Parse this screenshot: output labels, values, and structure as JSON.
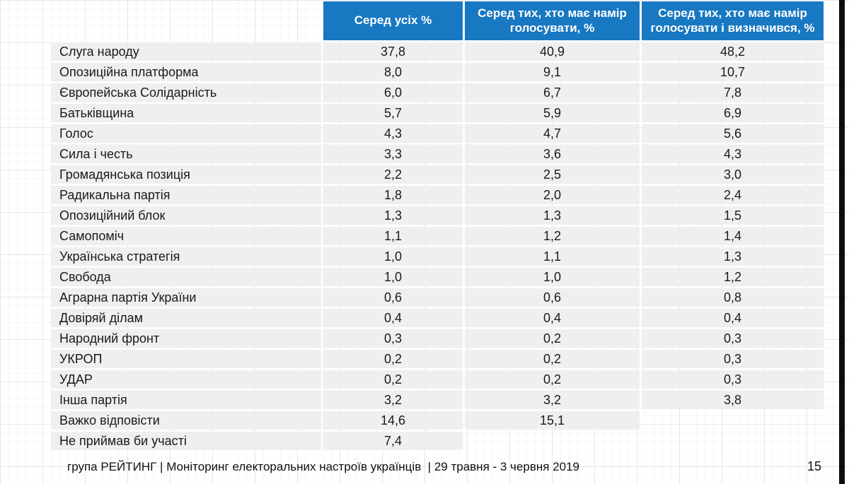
{
  "chart_data": {
    "type": "table",
    "columns": [
      "Серед усіх %",
      "Серед тих, хто має намір голосувати, %",
      "Серед тих, хто має намір голосувати і визначився, %"
    ],
    "rows": [
      {
        "name": "Слуга народу",
        "all": "37,8",
        "voters": "40,9",
        "decided": "48,2"
      },
      {
        "name": "Опозиційна платформа",
        "all": "8,0",
        "voters": "9,1",
        "decided": "10,7"
      },
      {
        "name": "Європейська Солідарність",
        "all": "6,0",
        "voters": "6,7",
        "decided": "7,8"
      },
      {
        "name": "Батьківщина",
        "all": "5,7",
        "voters": "5,9",
        "decided": "6,9"
      },
      {
        "name": "Голос",
        "all": "4,3",
        "voters": "4,7",
        "decided": "5,6"
      },
      {
        "name": "Сила і честь",
        "all": "3,3",
        "voters": "3,6",
        "decided": "4,3"
      },
      {
        "name": "Громадянська позиція",
        "all": "2,2",
        "voters": "2,5",
        "decided": "3,0"
      },
      {
        "name": "Радикальна партія",
        "all": "1,8",
        "voters": "2,0",
        "decided": "2,4"
      },
      {
        "name": "Опозиційний блок",
        "all": "1,3",
        "voters": "1,3",
        "decided": "1,5"
      },
      {
        "name": "Самопоміч",
        "all": "1,1",
        "voters": "1,2",
        "decided": "1,4"
      },
      {
        "name": "Українська стратегія",
        "all": "1,0",
        "voters": "1,1",
        "decided": "1,3"
      },
      {
        "name": "Свобода",
        "all": "1,0",
        "voters": "1,0",
        "decided": "1,2"
      },
      {
        "name": "Аграрна партія України",
        "all": "0,6",
        "voters": "0,6",
        "decided": "0,8"
      },
      {
        "name": "Довіряй ділам",
        "all": "0,4",
        "voters": "0,4",
        "decided": "0,4"
      },
      {
        "name": "Народний фронт",
        "all": "0,3",
        "voters": "0,2",
        "decided": "0,3"
      },
      {
        "name": "УКРОП",
        "all": "0,2",
        "voters": "0,2",
        "decided": "0,3"
      },
      {
        "name": "УДАР",
        "all": "0,2",
        "voters": "0,2",
        "decided": "0,3"
      },
      {
        "name": "Інша партія",
        "all": "3,2",
        "voters": "3,2",
        "decided": "3,8"
      },
      {
        "name": "Важко відповісти",
        "all": "14,6",
        "voters": "15,1",
        "decided": null
      },
      {
        "name": "Не приймав би участі",
        "all": "7,4",
        "voters": null,
        "decided": null
      }
    ]
  },
  "footer": {
    "text": "група РЕЙТИНГ | Моніторинг електоральних настроїв українців  | 29 травня - 3 червня 2019",
    "page": "15"
  },
  "colors": {
    "header_bg": "#1878C2",
    "row_bg": "#EFEFEF",
    "header_text": "#FFFFFF",
    "body_text": "#1A1A1A",
    "right_bar": "#0D0D0D"
  }
}
